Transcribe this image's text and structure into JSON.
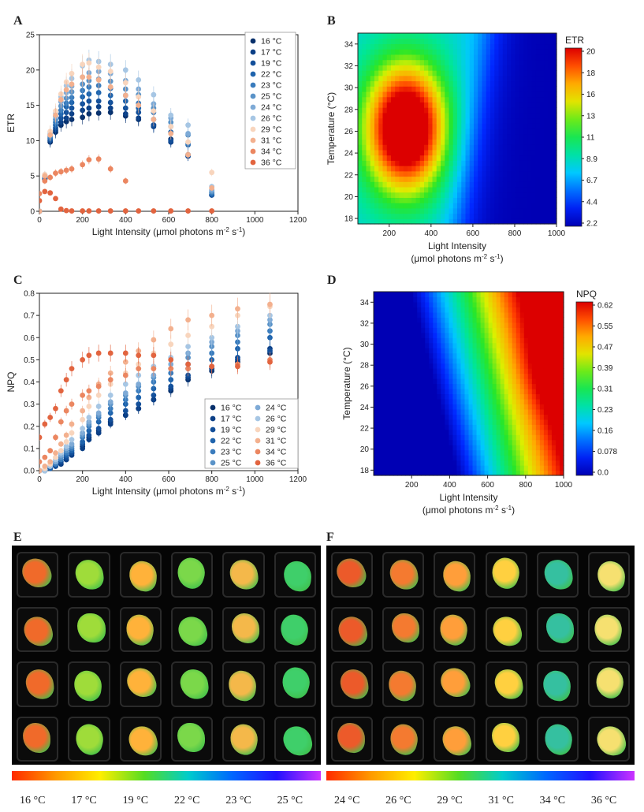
{
  "panels": {
    "A": "A",
    "B": "B",
    "C": "C",
    "D": "D",
    "E": "E",
    "F": "F"
  },
  "chart_data": [
    {
      "id": "A",
      "type": "scatter",
      "xlabel": "Light Intensity (μmol photons m-2 s-1)",
      "ylabel": "ETR",
      "xlim": [
        0,
        1200
      ],
      "ylim": [
        0,
        25
      ],
      "xticks": [
        0,
        200,
        400,
        600,
        800,
        1000,
        1200
      ],
      "yticks": [
        0,
        5,
        10,
        15,
        20,
        25
      ],
      "legend_position": "top-right",
      "x": [
        0,
        25,
        50,
        75,
        100,
        125,
        150,
        200,
        230,
        275,
        330,
        400,
        460,
        530,
        610,
        690,
        800
      ],
      "series": [
        {
          "name": "16 °C",
          "color": "#08306b",
          "values": [
            0,
            4.5,
            9.8,
            11.2,
            12.2,
            12.7,
            13.0,
            13.3,
            13.8,
            13.9,
            14.0,
            13.5,
            13.0,
            12.2,
            10.2,
            8.0,
            2.3
          ]
        },
        {
          "name": "17 °C",
          "color": "#0b3f86",
          "values": [
            0,
            4.6,
            10.0,
            11.5,
            12.6,
            13.2,
            13.8,
            14.3,
            14.6,
            14.8,
            14.6,
            13.8,
            13.2,
            12.0,
            9.8,
            7.8,
            2.3
          ]
        },
        {
          "name": "19 °C",
          "color": "#134f9a",
          "values": [
            0,
            4.7,
            10.1,
            11.8,
            13.2,
            14.0,
            14.6,
            15.2,
            15.6,
            15.6,
            15.4,
            14.6,
            14.0,
            12.2,
            10.0,
            7.8,
            2.3
          ]
        },
        {
          "name": "22 °C",
          "color": "#1f64ad",
          "values": [
            0,
            4.8,
            10.3,
            12.2,
            13.8,
            14.8,
            15.4,
            16.2,
            16.6,
            16.8,
            16.4,
            15.6,
            14.6,
            13.0,
            11.2,
            9.4,
            2.4
          ]
        },
        {
          "name": "23 °C",
          "color": "#3a7cbd",
          "values": [
            0,
            4.9,
            10.5,
            12.6,
            14.3,
            15.3,
            16.1,
            17.1,
            17.6,
            17.8,
            17.4,
            16.4,
            15.3,
            14.0,
            12.0,
            9.6,
            2.6
          ]
        },
        {
          "name": "25 °C",
          "color": "#5a93c8",
          "values": [
            0,
            5.0,
            10.7,
            13.0,
            14.9,
            16.0,
            16.9,
            18.0,
            18.5,
            18.7,
            18.4,
            17.3,
            16.5,
            14.6,
            12.6,
            10.8,
            2.8
          ]
        },
        {
          "name": "24 °C",
          "color": "#7eaad6",
          "values": [
            0,
            5.1,
            10.9,
            13.4,
            15.5,
            16.8,
            17.7,
            19.0,
            19.6,
            19.8,
            19.5,
            18.5,
            17.3,
            15.2,
            13.2,
            11.0,
            3.0
          ]
        },
        {
          "name": "26 °C",
          "color": "#a6c6e4",
          "values": [
            0,
            5.2,
            11.2,
            13.9,
            16.2,
            17.8,
            18.8,
            20.6,
            21.4,
            21.2,
            20.8,
            20.0,
            18.6,
            16.5,
            13.6,
            12.2,
            3.5
          ]
        },
        {
          "name": "29 °C",
          "color": "#f8d5bd",
          "values": [
            0,
            5.2,
            11.3,
            14.2,
            16.6,
            18.3,
            19.5,
            20.8,
            21.0,
            20.4,
            19.8,
            18.2,
            16.2,
            14.2,
            12.0,
            9.8,
            5.5
          ]
        },
        {
          "name": "31 °C",
          "color": "#f3b08e",
          "values": [
            0,
            5.0,
            10.8,
            13.6,
            15.8,
            17.2,
            18.0,
            19.0,
            19.0,
            18.6,
            17.6,
            16.4,
            15.0,
            13.0,
            11.0,
            8.0,
            3.3
          ]
        },
        {
          "name": "34 °C",
          "color": "#eb8660",
          "values": [
            2.5,
            4.3,
            4.8,
            5.4,
            5.6,
            5.8,
            6.0,
            6.6,
            7.3,
            7.4,
            6.0,
            4.3,
            null,
            null,
            null,
            null,
            null
          ]
        },
        {
          "name": "36 °C",
          "color": "#e2643f",
          "values": [
            1.5,
            2.8,
            2.6,
            1.8,
            0.3,
            0.1,
            0.05,
            0.05,
            0.05,
            0.05,
            0.05,
            0.05,
            0.05,
            0.05,
            0.05,
            0.05,
            0.05
          ]
        }
      ]
    },
    {
      "id": "B",
      "type": "heatmap",
      "xlabel": "Light Intensity",
      "xlabel2": "(μmol photons m-2 s-1)",
      "ylabel": "Temperature (°C)",
      "xlim": [
        50,
        1000
      ],
      "ylim": [
        17.5,
        35
      ],
      "xticks": [
        200,
        400,
        600,
        800,
        1000
      ],
      "yticks": [
        18,
        20,
        22,
        24,
        26,
        28,
        30,
        32,
        34
      ],
      "colorbar_title": "ETR",
      "colorbar_ticks": [
        "20",
        "18",
        "16",
        "13",
        "11",
        "8.9",
        "6.7",
        "4.4",
        "2.2"
      ],
      "vmin": 2.2,
      "vmax": 20.5
    },
    {
      "id": "C",
      "type": "scatter",
      "xlabel": "Light Intensity (μmol photons m-2 s-1)",
      "ylabel": "NPQ",
      "xlim": [
        0,
        1200
      ],
      "ylim": [
        0,
        0.8
      ],
      "xticks": [
        0,
        200,
        400,
        600,
        800,
        1000,
        1200
      ],
      "yticks": [
        0.0,
        0.1,
        0.2,
        0.3,
        0.4,
        0.5,
        0.6,
        0.7,
        0.8
      ],
      "legend_position": "bottom-right",
      "x": [
        0,
        25,
        50,
        75,
        100,
        125,
        150,
        200,
        230,
        275,
        330,
        400,
        460,
        530,
        610,
        690,
        800,
        920,
        1070
      ],
      "series": [
        {
          "name": "16 °C",
          "color": "#08306b",
          "values": [
            0,
            0.0,
            0.01,
            0.02,
            0.03,
            0.05,
            0.08,
            0.11,
            0.15,
            0.18,
            0.22,
            0.25,
            0.28,
            0.32,
            0.36,
            0.41,
            0.45,
            0.49,
            0.53
          ]
        },
        {
          "name": "17 °C",
          "color": "#0b3f86",
          "values": [
            0,
            0.0,
            0.01,
            0.02,
            0.03,
            0.05,
            0.07,
            0.1,
            0.14,
            0.17,
            0.21,
            0.25,
            0.28,
            0.32,
            0.37,
            0.42,
            0.46,
            0.5,
            0.55
          ]
        },
        {
          "name": "19 °C",
          "color": "#134f9a",
          "values": [
            0,
            0.0,
            0.01,
            0.02,
            0.04,
            0.06,
            0.08,
            0.12,
            0.16,
            0.19,
            0.23,
            0.27,
            0.3,
            0.34,
            0.38,
            0.43,
            0.47,
            0.51,
            0.54
          ]
        },
        {
          "name": "22 °C",
          "color": "#1f64ad",
          "values": [
            0,
            0.0,
            0.01,
            0.03,
            0.05,
            0.07,
            0.09,
            0.13,
            0.18,
            0.22,
            0.26,
            0.3,
            0.33,
            0.37,
            0.41,
            0.46,
            0.5,
            0.55,
            0.6
          ]
        },
        {
          "name": "23 °C",
          "color": "#3a7cbd",
          "values": [
            0,
            0.0,
            0.02,
            0.03,
            0.05,
            0.08,
            0.1,
            0.15,
            0.2,
            0.24,
            0.28,
            0.32,
            0.36,
            0.4,
            0.44,
            0.48,
            0.53,
            0.58,
            0.63
          ]
        },
        {
          "name": "25 °C",
          "color": "#5a93c8",
          "values": [
            0,
            0.0,
            0.02,
            0.04,
            0.06,
            0.09,
            0.11,
            0.16,
            0.21,
            0.25,
            0.3,
            0.34,
            0.38,
            0.42,
            0.46,
            0.51,
            0.56,
            0.61,
            0.66
          ]
        },
        {
          "name": "24 °C",
          "color": "#7eaad6",
          "values": [
            0,
            0.0,
            0.02,
            0.04,
            0.07,
            0.1,
            0.12,
            0.17,
            0.22,
            0.26,
            0.31,
            0.35,
            0.39,
            0.43,
            0.48,
            0.53,
            0.58,
            0.63,
            0.68
          ]
        },
        {
          "name": "26 °C",
          "color": "#a6c6e4",
          "values": [
            0,
            0.0,
            0.02,
            0.05,
            0.08,
            0.11,
            0.14,
            0.19,
            0.24,
            0.29,
            0.34,
            0.39,
            0.43,
            0.47,
            0.51,
            0.56,
            0.6,
            0.65,
            0.7
          ]
        },
        {
          "name": "29 °C",
          "color": "#f8d5bd",
          "values": [
            0,
            0.01,
            0.03,
            0.06,
            0.09,
            0.13,
            0.17,
            0.23,
            0.29,
            0.34,
            0.39,
            0.44,
            0.48,
            0.53,
            0.57,
            0.61,
            0.65,
            0.7,
            0.74
          ]
        },
        {
          "name": "31 °C",
          "color": "#f3b08e",
          "values": [
            0,
            0.02,
            0.04,
            0.08,
            0.12,
            0.16,
            0.21,
            0.27,
            0.33,
            0.39,
            0.44,
            0.49,
            0.54,
            0.59,
            0.64,
            0.68,
            0.7,
            0.73,
            0.75
          ]
        },
        {
          "name": "34 °C",
          "color": "#eb8660",
          "values": [
            0.04,
            0.06,
            0.09,
            0.15,
            0.22,
            0.27,
            0.3,
            0.34,
            0.36,
            0.38,
            0.41,
            0.43,
            0.46,
            0.46,
            0.46,
            0.46,
            0.47,
            0.48,
            0.5
          ]
        },
        {
          "name": "36 °C",
          "color": "#e2643f",
          "values": [
            0.15,
            0.21,
            0.24,
            0.28,
            0.36,
            0.41,
            0.46,
            0.5,
            0.52,
            0.53,
            0.53,
            0.53,
            0.52,
            0.52,
            0.5,
            0.48,
            0.47,
            0.47,
            0.49
          ]
        }
      ]
    },
    {
      "id": "D",
      "type": "heatmap",
      "xlabel": "Light Intensity",
      "xlabel2": "(μmol photons m-2 s-1)",
      "ylabel": "Temperature (°C)",
      "xlim": [
        0,
        1000
      ],
      "ylim": [
        17.5,
        35
      ],
      "xticks": [
        200,
        400,
        600,
        800,
        1000
      ],
      "yticks": [
        18,
        20,
        22,
        24,
        26,
        28,
        30,
        32,
        34
      ],
      "colorbar_title": "NPQ",
      "colorbar_ticks": [
        "0.62",
        "0.55",
        "0.47",
        "0.39",
        "0.31",
        "0.23",
        "0.16",
        "0.078",
        "0.0"
      ],
      "vmin": 0.0,
      "vmax": 0.63
    }
  ],
  "photo_E": {
    "labels": [
      "16 °C",
      "17 °C",
      "19 °C",
      "22 °C",
      "23 °C",
      "25 °C"
    ],
    "colors": [
      "#f06a2a",
      "#9fdc3a",
      "#ffb23a",
      "#7bd84a",
      "#f4b84a",
      "#3fcf6a"
    ]
  },
  "photo_F": {
    "labels": [
      "24 °C",
      "26 °C",
      "29 °C",
      "31 °C",
      "34 °C",
      "36 °C"
    ],
    "colors": [
      "#ec5a2a",
      "#f47a30",
      "#ff9e3a",
      "#ffd040",
      "#35c0a0",
      "#f6e070"
    ]
  }
}
